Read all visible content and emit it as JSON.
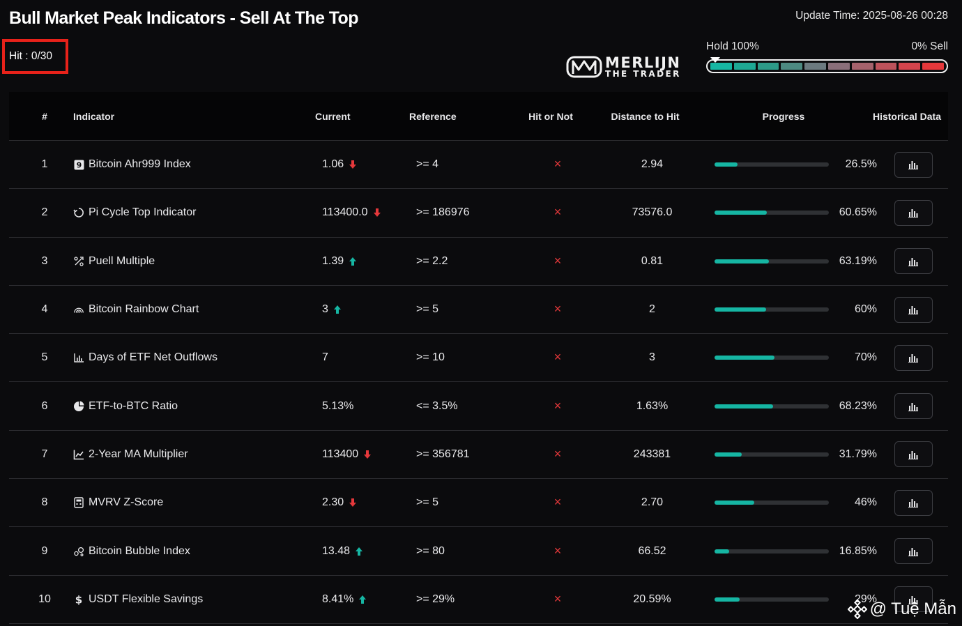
{
  "header": {
    "title": "Bull Market Peak Indicators - Sell At The Top",
    "update_time": "Update Time: 2025-08-26 00:28",
    "hit_badge": "Hit : 0/30"
  },
  "logo": {
    "line1": "MERLIJN",
    "line2": "THE TRADER"
  },
  "gauge": {
    "left_label": "Hold 100%",
    "right_label": "0% Sell",
    "position_fraction": 0,
    "segment_colors": [
      "#16b6a3",
      "#1ea894",
      "#2d9a88",
      "#4d8a82",
      "#6c7a80",
      "#8a6f7a",
      "#a5626c",
      "#bd525b",
      "#d4444c",
      "#e5383b"
    ]
  },
  "table": {
    "headers": {
      "num": "#",
      "indicator": "Indicator",
      "current": "Current",
      "reference": "Reference",
      "hit": "Hit or Not",
      "distance": "Distance to Hit",
      "progress": "Progress",
      "historical": "Historical Data"
    },
    "rows": [
      {
        "num": "1",
        "icon": "nine-square-icon",
        "indicator": "Bitcoin Ahr999 Index",
        "current": "1.06",
        "trend": "down",
        "reference": ">= 4",
        "hit": "×",
        "distance": "2.94",
        "progress_value": 26.5,
        "progress": "26.5%"
      },
      {
        "num": "2",
        "icon": "cycle-icon",
        "indicator": "Pi Cycle Top Indicator",
        "current": "113400.0",
        "trend": "down",
        "reference": ">= 186976",
        "hit": "×",
        "distance": "73576.0",
        "progress_value": 60.65,
        "progress": "60.65%"
      },
      {
        "num": "3",
        "icon": "puell-icon",
        "indicator": "Puell Multiple",
        "current": "1.39",
        "trend": "up",
        "reference": ">= 2.2",
        "hit": "×",
        "distance": "0.81",
        "progress_value": 63.19,
        "progress": "63.19%"
      },
      {
        "num": "4",
        "icon": "rainbow-icon",
        "indicator": "Bitcoin Rainbow Chart",
        "current": "3",
        "trend": "up",
        "reference": ">= 5",
        "hit": "×",
        "distance": "2",
        "progress_value": 60,
        "progress": "60%"
      },
      {
        "num": "5",
        "icon": "bar-chart-icon",
        "indicator": "Days of ETF Net Outflows",
        "current": "7",
        "trend": "none",
        "reference": ">= 10",
        "hit": "×",
        "distance": "3",
        "progress_value": 70,
        "progress": "70%"
      },
      {
        "num": "6",
        "icon": "pie-chart-icon",
        "indicator": "ETF-to-BTC Ratio",
        "current": "5.13%",
        "trend": "none",
        "reference": "<= 3.5%",
        "hit": "×",
        "distance": "1.63%",
        "progress_value": 68.23,
        "progress": "68.23%"
      },
      {
        "num": "7",
        "icon": "line-chart-icon",
        "indicator": "2-Year MA Multiplier",
        "current": "113400",
        "trend": "down",
        "reference": ">= 356781",
        "hit": "×",
        "distance": "243381",
        "progress_value": 31.79,
        "progress": "31.79%"
      },
      {
        "num": "8",
        "icon": "calculator-icon",
        "indicator": "MVRV Z-Score",
        "current": "2.30",
        "trend": "down",
        "reference": ">= 5",
        "hit": "×",
        "distance": "2.70",
        "progress_value": 46,
        "progress": "46%"
      },
      {
        "num": "9",
        "icon": "bubbles-icon",
        "indicator": "Bitcoin Bubble Index",
        "current": "13.48",
        "trend": "up",
        "reference": ">= 80",
        "hit": "×",
        "distance": "66.52",
        "progress_value": 16.85,
        "progress": "16.85%"
      },
      {
        "num": "10",
        "icon": "dollar-icon",
        "indicator": "USDT Flexible Savings",
        "current": "8.41%",
        "trend": "up",
        "reference": ">= 29%",
        "hit": "×",
        "distance": "20.59%",
        "progress_value": 29,
        "progress": "29%"
      }
    ]
  },
  "colors": {
    "up": "#16b6a3",
    "down": "#e5383b",
    "progress_fill": "#16b6a3",
    "hit_border": "#e8221a"
  },
  "watermark": {
    "text": "@ Tuệ Mẫn",
    "icon": "binance-icon"
  }
}
